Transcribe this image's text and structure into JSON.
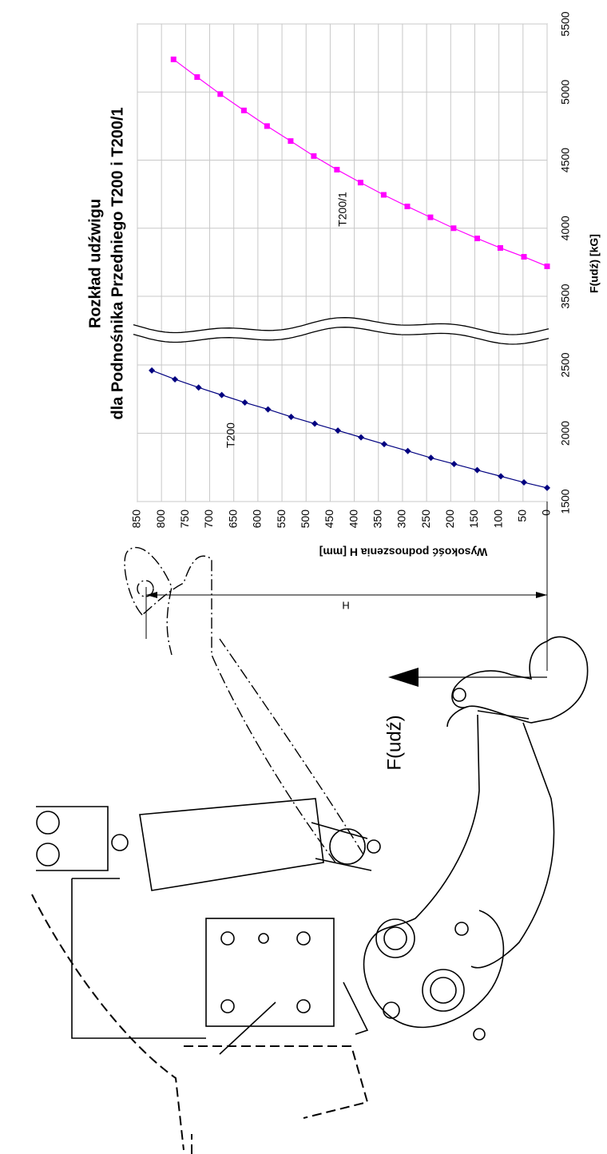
{
  "chart_data": {
    "type": "line",
    "title": "Rozkład udźwigu",
    "subtitle": "dla Podnośnika Przedniego T200 i T200/1",
    "x_label": "Wysokość podnoszenia H [mm]",
    "y_label": "F(udź) [kG]",
    "xlim": [
      0,
      850
    ],
    "xticks": [
      0,
      50,
      100,
      150,
      200,
      250,
      300,
      350,
      400,
      450,
      500,
      550,
      600,
      650,
      700,
      750,
      800,
      850
    ],
    "ylim": [
      1500,
      5500
    ],
    "yticks": [
      1500,
      2000,
      2500,
      3500,
      4000,
      4500,
      5000,
      5500
    ],
    "y_break": [
      2500,
      3500
    ],
    "grid": true,
    "series": [
      {
        "name": "T200",
        "color": "#000080",
        "marker": "diamond",
        "x": [
          0,
          48,
          96,
          145,
          193,
          241,
          289,
          338,
          386,
          434,
          482,
          531,
          579,
          627,
          675,
          723,
          772,
          820
        ],
        "values": [
          1600,
          1640,
          1685,
          1730,
          1775,
          1820,
          1870,
          1920,
          1970,
          2020,
          2070,
          2120,
          2175,
          2225,
          2280,
          2335,
          2395,
          2460
        ]
      },
      {
        "name": "T200/1",
        "color": "#ff00ff",
        "marker": "square",
        "x": [
          0,
          48,
          97,
          145,
          194,
          242,
          290,
          339,
          387,
          436,
          484,
          532,
          581,
          629,
          678,
          726,
          775
        ],
        "values": [
          3720,
          3790,
          3855,
          3925,
          4000,
          4080,
          4160,
          4245,
          4335,
          4430,
          4530,
          4640,
          4750,
          4865,
          4985,
          5110,
          5240
        ]
      }
    ]
  },
  "drawing": {
    "dimension_label": "H",
    "force_label": "F(udź)"
  }
}
